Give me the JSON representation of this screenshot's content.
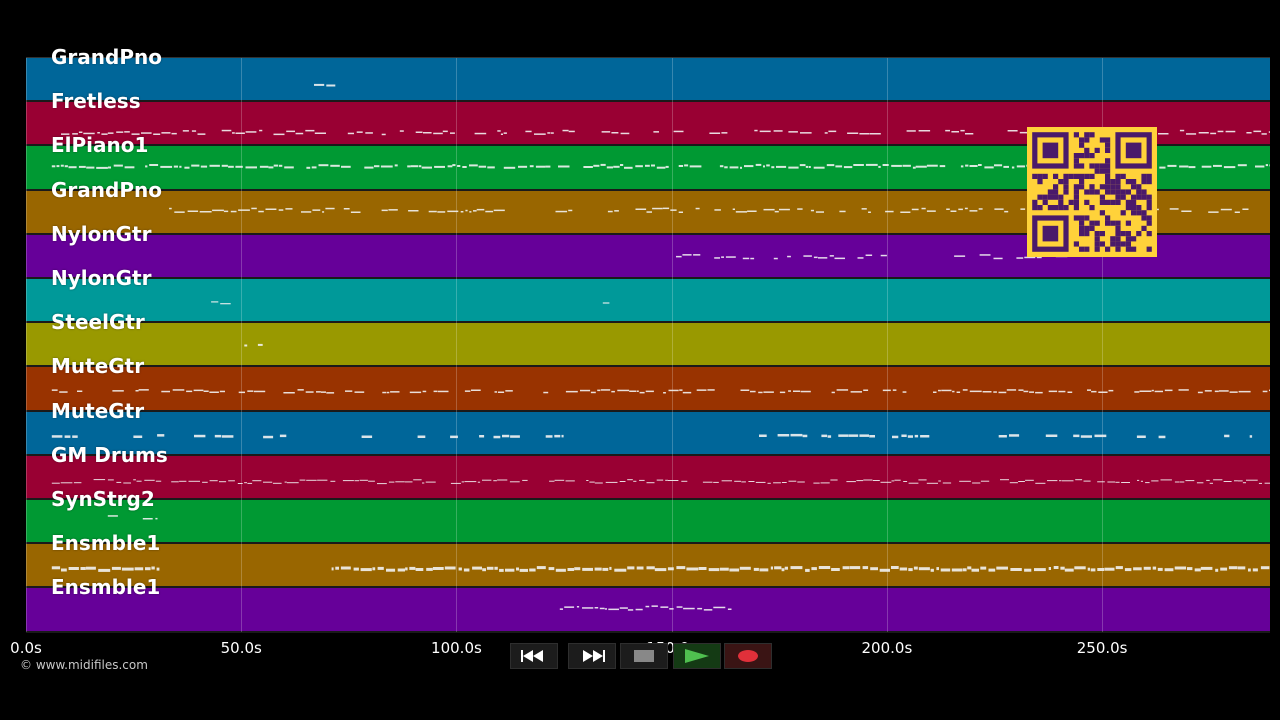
{
  "tracks": [
    {
      "name": "GrandPno",
      "color": "#006699"
    },
    {
      "name": "Fretless",
      "color": "#990033"
    },
    {
      "name": "ElPiano1",
      "color": "#009933"
    },
    {
      "name": "GrandPno",
      "color": "#996600"
    },
    {
      "name": "NylonGtr",
      "color": "#660099"
    },
    {
      "name": "NylonGtr",
      "color": "#009999"
    },
    {
      "name": "SteelGtr",
      "color": "#999900"
    },
    {
      "name": "MuteGtr",
      "color": "#993300"
    },
    {
      "name": "MuteGtr",
      "color": "#006699"
    },
    {
      "name": "GM Drums",
      "color": "#990033"
    },
    {
      "name": "SynStrg2",
      "color": "#009933"
    },
    {
      "name": "Ensmble1",
      "color": "#996600"
    },
    {
      "name": "Ensmble1",
      "color": "#660099"
    }
  ],
  "timeline": {
    "ticks": [
      "0.0s",
      "50.0s",
      "100.0s",
      "150.0s",
      "200.0s",
      "250.0s"
    ],
    "tick_seconds": [
      0,
      50,
      100,
      150,
      200,
      250
    ],
    "max_seconds": 289
  },
  "copyright": "© www.midifiles.com",
  "transport": {
    "buttons": [
      "rewind-icon",
      "fast-forward-icon",
      "stop-icon",
      "play-icon",
      "record-icon"
    ],
    "play_color": "#3a8a3a",
    "record_color": "#e0303a"
  },
  "qr": {
    "fg": "#4a1a6a",
    "bg": "#ffd23a"
  }
}
